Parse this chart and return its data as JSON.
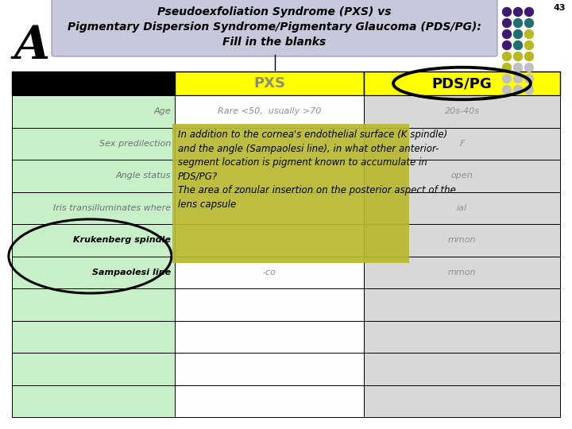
{
  "title_line1": "Pseudoexfoliation Syndrome (PXS) vs",
  "title_line2": "Pigmentary Dispersion Syndrome/Pigmentary Glaucoma (PDS/PG):",
  "title_line3": "Fill in the blanks",
  "slide_num": "43",
  "letter": "A",
  "title_bg": "#c8c8dc",
  "table_header_bg": "#ffff00",
  "table_col1_bg": "#c8f0c8",
  "table_col2_bg_data": "#ffffff",
  "table_col3_bg": "#d8d8d8",
  "row_labels": [
    "Age",
    "Sex predilection",
    "Angle status",
    "Iris transilluminates where",
    "Krukenberg spindle",
    "Sampaolesi line",
    "",
    "",
    "",
    ""
  ],
  "pxs_col": [
    "Rare <50,  usually >70",
    "",
    "",
    "",
    "",
    "-co",
    "",
    "",
    "",
    ""
  ],
  "pdspg_col": [
    "20s-40s",
    "F",
    "open",
    "ial",
    "mmon",
    "mmon",
    "",
    "",
    "",
    ""
  ],
  "popup_bg": "#b8b830",
  "dot_grid": [
    [
      "#3d1a6e",
      "#3d1a6e",
      "#3d1a6e"
    ],
    [
      "#3d1a6e",
      "#207070",
      "#207070"
    ],
    [
      "#3d1a6e",
      "#207070",
      "#b8b820"
    ],
    [
      "#3d1a6e",
      "#207070",
      "#b8b820"
    ],
    [
      "#b8b820",
      "#b8b820",
      "#b8b820"
    ],
    [
      "#b8b820",
      "#c0c0c0",
      "#c0c0c0"
    ],
    [
      "#c0c0c0",
      "#c0c0c0",
      "#c0c0c0"
    ],
    [
      "#c0c0c0",
      "#c0c0c0",
      "#c0c0c0"
    ]
  ]
}
